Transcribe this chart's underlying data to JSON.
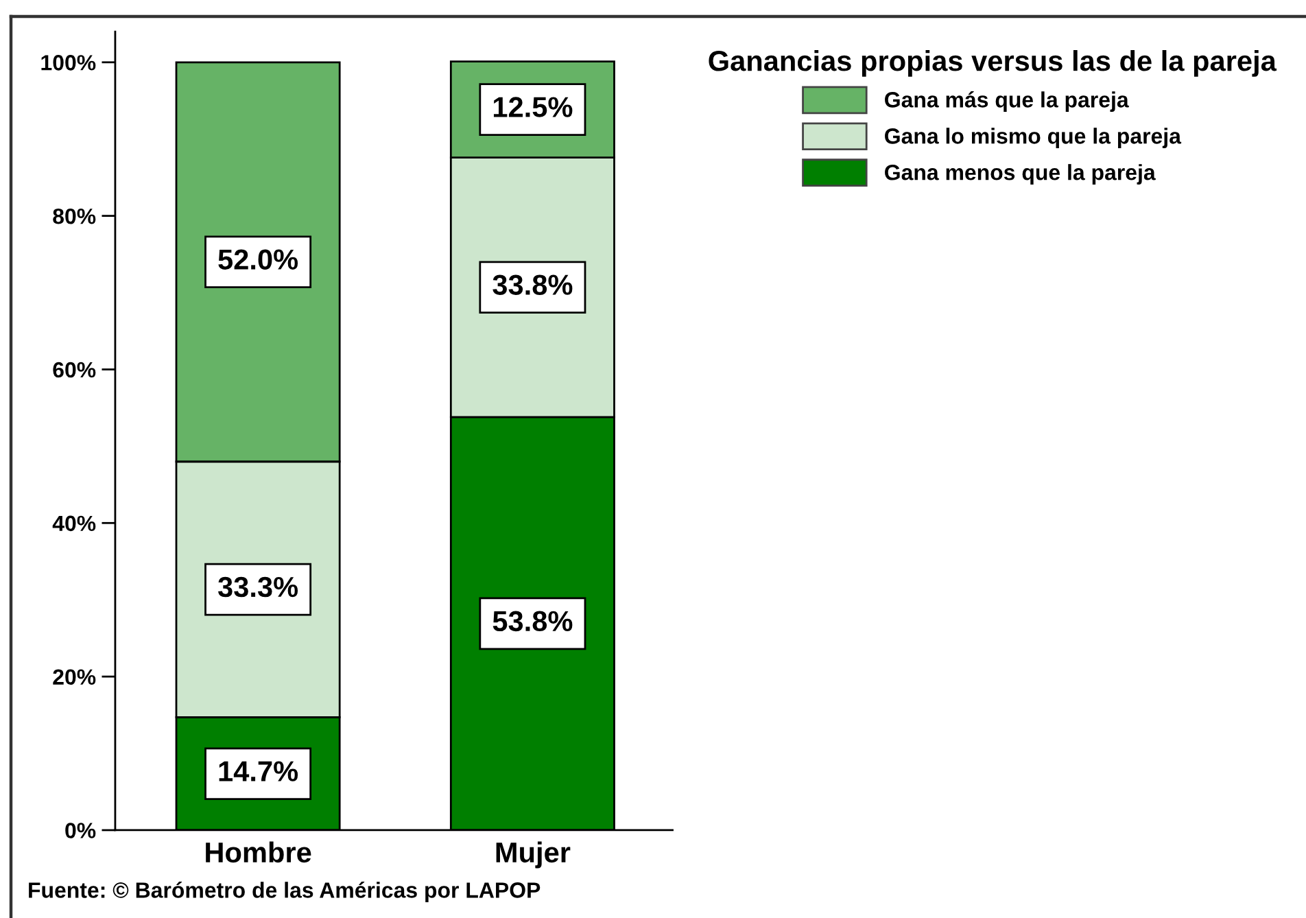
{
  "chart_data": {
    "type": "bar",
    "stacked": true,
    "categories": [
      "Hombre",
      "Mujer"
    ],
    "series": [
      {
        "name": "Gana menos que la pareja",
        "color": "#007f00",
        "values": [
          14.7,
          53.8
        ],
        "value_labels": [
          "14.7%",
          "53.8%"
        ]
      },
      {
        "name": "Gana lo mismo que la pareja",
        "color": "#cde6cd",
        "values": [
          33.3,
          33.8
        ],
        "value_labels": [
          "33.3%",
          "33.8%"
        ]
      },
      {
        "name": "Gana más que la pareja",
        "color": "#66b366",
        "values": [
          52.0,
          12.5
        ],
        "value_labels": [
          "52.0%",
          "12.5%"
        ]
      }
    ],
    "ylim": [
      0,
      104
    ],
    "yticks": [
      {
        "value": 0,
        "label": "0%"
      },
      {
        "value": 20,
        "label": "20%"
      },
      {
        "value": 40,
        "label": "40%"
      },
      {
        "value": 60,
        "label": "60%"
      },
      {
        "value": 80,
        "label": "80%"
      },
      {
        "value": 100,
        "label": "100%"
      }
    ],
    "legend": "top right",
    "legend_title": "Ganancias propias versus las de la pareja",
    "annotations": [
      "Fuente: © Barómetro de las Américas por LAPOP"
    ]
  }
}
